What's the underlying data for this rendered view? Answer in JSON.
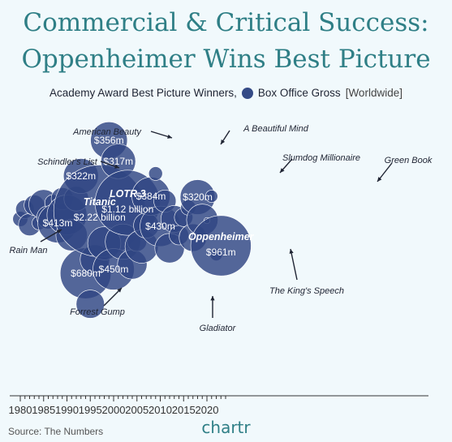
{
  "title_line1": "Commercial & Critical Success:",
  "title_line2": "Oppenheimer Wins Best Picture",
  "subtitle_main": "Academy Award Best Picture Winners,",
  "subtitle_legend": "Box Office Gross",
  "subtitle_note": "[Worldwide]",
  "source": "Source: The Numbers",
  "brand": "chartr",
  "colors": {
    "bubble": "#2f4683",
    "accent": "#2f7f86",
    "background": "#f1f9fc"
  },
  "chart_data": {
    "type": "scatter",
    "xlim": [
      1979,
      2025
    ],
    "x_ticks": [
      1980,
      1985,
      1990,
      1995,
      2000,
      2005,
      2010,
      2015,
      2020
    ],
    "size_field": "Box Office Gross [Worldwide]",
    "points": [
      {
        "x": 1980,
        "gross_m": 60
      },
      {
        "x": 1981,
        "gross_m": 90
      },
      {
        "x": 1982,
        "gross_m": 130
      },
      {
        "x": 1983,
        "gross_m": 110
      },
      {
        "x": 1984,
        "gross_m": 50
      },
      {
        "x": 1985,
        "gross_m": 230
      },
      {
        "x": 1986,
        "gross_m": 140
      },
      {
        "x": 1987,
        "gross_m": 70
      },
      {
        "x": 1988,
        "gross_m": 413,
        "label": "$413m",
        "annotation": "Rain Man"
      },
      {
        "x": 1989,
        "gross_m": 130
      },
      {
        "x": 1990,
        "gross_m": 420
      },
      {
        "x": 1991,
        "gross_m": 260
      },
      {
        "x": 1992,
        "gross_m": 160
      },
      {
        "x": 1993,
        "gross_m": 322,
        "label": "$322m",
        "annotation": "Schindler's List"
      },
      {
        "x": 1994,
        "gross_m": 680,
        "label": "$680m",
        "annotation": "Forrest Gump"
      },
      {
        "x": 1995,
        "gross_m": 210
      },
      {
        "x": 1996,
        "gross_m": 230
      },
      {
        "x": 1997,
        "gross_m": 2220,
        "label": "$2.22 billion",
        "name_label": "Titanic"
      },
      {
        "x": 1998,
        "gross_m": 290
      },
      {
        "x": 1999,
        "gross_m": 356,
        "label": "$356m",
        "annotation": "American Beauty"
      },
      {
        "x": 2000,
        "gross_m": 450,
        "label": "$450m",
        "annotation": "Gladiator"
      },
      {
        "x": 2001,
        "gross_m": 317,
        "label": "$317m",
        "annotation": "A Beautiful Mind"
      },
      {
        "x": 2002,
        "gross_m": 330
      },
      {
        "x": 2003,
        "gross_m": 1120,
        "label": "$1.12 billion",
        "name_label": "LOTR 3"
      },
      {
        "x": 2004,
        "gross_m": 230
      },
      {
        "x": 2005,
        "gross_m": 100
      },
      {
        "x": 2006,
        "gross_m": 290
      },
      {
        "x": 2007,
        "gross_m": 170
      },
      {
        "x": 2008,
        "gross_m": 384,
        "label": "$384m",
        "annotation": "Slumdog Millionaire"
      },
      {
        "x": 2009,
        "gross_m": 50
      },
      {
        "x": 2010,
        "gross_m": 430,
        "label": "$430m",
        "annotation": "The King's Speech"
      },
      {
        "x": 2011,
        "gross_m": 130
      },
      {
        "x": 2012,
        "gross_m": 230
      },
      {
        "x": 2013,
        "gross_m": 190
      },
      {
        "x": 2014,
        "gross_m": 100
      },
      {
        "x": 2015,
        "gross_m": 90
      },
      {
        "x": 2016,
        "gross_m": 60
      },
      {
        "x": 2017,
        "gross_m": 200
      },
      {
        "x": 2018,
        "gross_m": 320,
        "label": "$320m",
        "annotation": "Green Book"
      },
      {
        "x": 2019,
        "gross_m": 260
      },
      {
        "x": 2020,
        "gross_m": 10
      },
      {
        "x": 2021,
        "gross_m": 40
      },
      {
        "x": 2022,
        "gross_m": 40
      },
      {
        "x": 2023,
        "gross_m": 961,
        "label": "$961m",
        "name_label": "Oppenheimer"
      }
    ]
  }
}
